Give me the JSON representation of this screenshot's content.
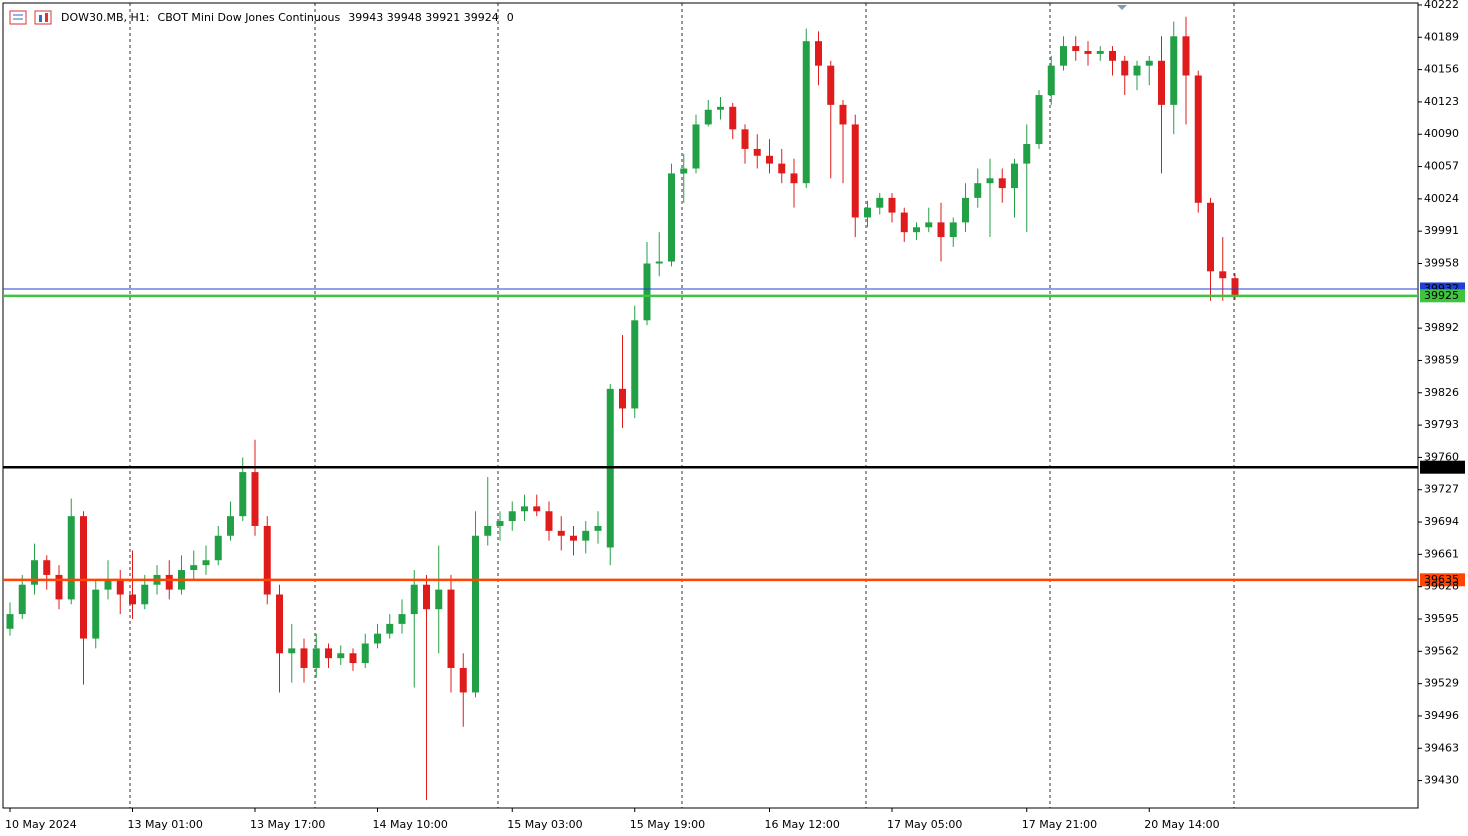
{
  "chart_data": {
    "type": "candlestick",
    "symbol": "DOW30.MB, H1:",
    "description": "CBOT Mini Dow Jones Continuous",
    "header_ohlc": "39943 39948 39921 39924",
    "header_extra": "0",
    "bull_color": "#22a046",
    "bear_color": "#e01b1b",
    "categories": [
      "10 May 2024",
      null,
      null,
      null,
      null,
      null,
      null,
      null,
      null,
      null,
      "13 May 01:00",
      null,
      null,
      null,
      null,
      null,
      null,
      null,
      null,
      null,
      "13 May 17:00",
      null,
      null,
      null,
      null,
      null,
      null,
      null,
      null,
      null,
      "14 May 10:00",
      null,
      null,
      null,
      null,
      null,
      null,
      null,
      null,
      null,
      null,
      "15 May 03:00",
      null,
      null,
      null,
      null,
      null,
      null,
      null,
      null,
      null,
      "15 May 19:00",
      null,
      null,
      null,
      null,
      null,
      null,
      null,
      null,
      null,
      null,
      "16 May 12:00",
      null,
      null,
      null,
      null,
      null,
      null,
      null,
      null,
      null,
      "17 May 05:00",
      null,
      null,
      null,
      null,
      null,
      null,
      null,
      null,
      null,
      null,
      "17 May 21:00",
      null,
      null,
      null,
      null,
      null,
      null,
      null,
      null,
      null,
      "20 May 14:00",
      null,
      null,
      null,
      null,
      null,
      null,
      null
    ],
    "open": [
      39585,
      39600,
      39630,
      39655,
      39640,
      39615,
      39700,
      39575,
      39625,
      39635,
      39620,
      39610,
      39630,
      39640,
      39625,
      39645,
      39650,
      39655,
      39680,
      39700,
      39745,
      39690,
      39620,
      39560,
      39565,
      39545,
      39565,
      39555,
      39560,
      39550,
      39570,
      39580,
      39590,
      39600,
      39630,
      39605,
      39625,
      39545,
      39520,
      39680,
      39690,
      39695,
      39705,
      39710,
      39705,
      39685,
      39680,
      39675,
      39685,
      39668,
      39830,
      39810,
      39900,
      39958,
      39960,
      40050,
      40055,
      40100,
      40115,
      40118,
      40095,
      40075,
      40068,
      40060,
      40050,
      40040,
      40185,
      40160,
      40120,
      40100,
      40005,
      40015,
      40025,
      40010,
      39990,
      39995,
      40000,
      39985,
      40000,
      40025,
      40040,
      40045,
      40035,
      40060,
      40080,
      40130,
      40160,
      40180,
      40175,
      40172,
      40175,
      40165,
      40150,
      40160,
      40165,
      40120,
      40190,
      40150,
      40020,
      39950,
      39943
    ],
    "high": [
      39612,
      39640,
      39672,
      39660,
      39650,
      39718,
      39705,
      39635,
      39655,
      39645,
      39665,
      39640,
      39650,
      39655,
      39660,
      39665,
      39670,
      39690,
      39715,
      39760,
      39778,
      39700,
      39630,
      39590,
      39575,
      39580,
      39570,
      39568,
      39565,
      39580,
      39590,
      39600,
      39615,
      39645,
      39640,
      39670,
      39640,
      39560,
      39705,
      39740,
      39705,
      39715,
      39722,
      39722,
      39715,
      39700,
      39690,
      39695,
      39705,
      39835,
      39885,
      39915,
      39980,
      39990,
      40060,
      40070,
      40110,
      40125,
      40128,
      40122,
      40100,
      40090,
      40085,
      40075,
      40065,
      40198,
      40195,
      40165,
      40125,
      40110,
      40022,
      40030,
      40030,
      40015,
      40000,
      40015,
      40020,
      40005,
      40040,
      40055,
      40065,
      40055,
      40065,
      40100,
      40135,
      40170,
      40190,
      40190,
      40185,
      40180,
      40180,
      40170,
      40165,
      40170,
      40190,
      40205,
      40210,
      40155,
      40025,
      39985,
      39948
    ],
    "low": [
      39578,
      39595,
      39620,
      39625,
      39605,
      39610,
      39528,
      39565,
      39615,
      39600,
      39595,
      39605,
      39620,
      39615,
      39620,
      39635,
      39640,
      39650,
      39675,
      39695,
      39680,
      39610,
      39520,
      39530,
      39530,
      39535,
      39545,
      39548,
      39542,
      39545,
      39565,
      39575,
      39580,
      39525,
      39410,
      39560,
      39520,
      39485,
      39515,
      39670,
      39675,
      39685,
      39695,
      39700,
      39675,
      39665,
      39660,
      39662,
      39672,
      39650,
      39790,
      39800,
      39895,
      39945,
      39955,
      40020,
      40050,
      40098,
      40105,
      40085,
      40060,
      40055,
      40050,
      40040,
      40015,
      40035,
      40140,
      40045,
      40040,
      39985,
      39995,
      40008,
      40000,
      39980,
      39982,
      39990,
      39960,
      39975,
      39990,
      40015,
      39985,
      40020,
      40005,
      39990,
      40075,
      40120,
      40155,
      40165,
      40160,
      40165,
      40150,
      40130,
      40135,
      40140,
      40050,
      40090,
      40100,
      40010,
      39920,
      39920,
      39921
    ],
    "close": [
      39600,
      39630,
      39655,
      39640,
      39615,
      39700,
      39575,
      39625,
      39635,
      39620,
      39610,
      39630,
      39640,
      39625,
      39645,
      39650,
      39655,
      39680,
      39700,
      39745,
      39690,
      39620,
      39560,
      39565,
      39545,
      39565,
      39555,
      39560,
      39550,
      39570,
      39580,
      39590,
      39600,
      39630,
      39605,
      39625,
      39545,
      39520,
      39680,
      39690,
      39695,
      39705,
      39710,
      39705,
      39685,
      39680,
      39675,
      39685,
      39690,
      39830,
      39810,
      39900,
      39958,
      39960,
      40050,
      40055,
      40100,
      40115,
      40118,
      40095,
      40075,
      40068,
      40060,
      40050,
      40040,
      40185,
      40160,
      40120,
      40100,
      40005,
      40015,
      40025,
      40010,
      39990,
      39995,
      40000,
      39985,
      40000,
      40025,
      40040,
      40045,
      40035,
      40060,
      40080,
      40130,
      40160,
      40180,
      40175,
      40172,
      40175,
      40165,
      40150,
      40160,
      40165,
      40120,
      40190,
      40150,
      40020,
      39950,
      39943,
      39924
    ],
    "ylim": [
      39402,
      40224
    ],
    "yticks": [
      40222,
      40189,
      40156,
      40123,
      40090,
      40057,
      40024,
      39991,
      39958,
      39892,
      39859,
      39826,
      39793,
      39760,
      39727,
      39694,
      39661,
      39628,
      39595,
      39562,
      39529,
      39496,
      39463,
      39430
    ],
    "levels": [
      {
        "value": 39932,
        "color": "#1f3fd6"
      },
      {
        "value": 39925,
        "color": "#3ec43e"
      },
      {
        "value": 39750,
        "color": "#000000"
      },
      {
        "value": 39635,
        "color": "#ff4500"
      }
    ]
  }
}
